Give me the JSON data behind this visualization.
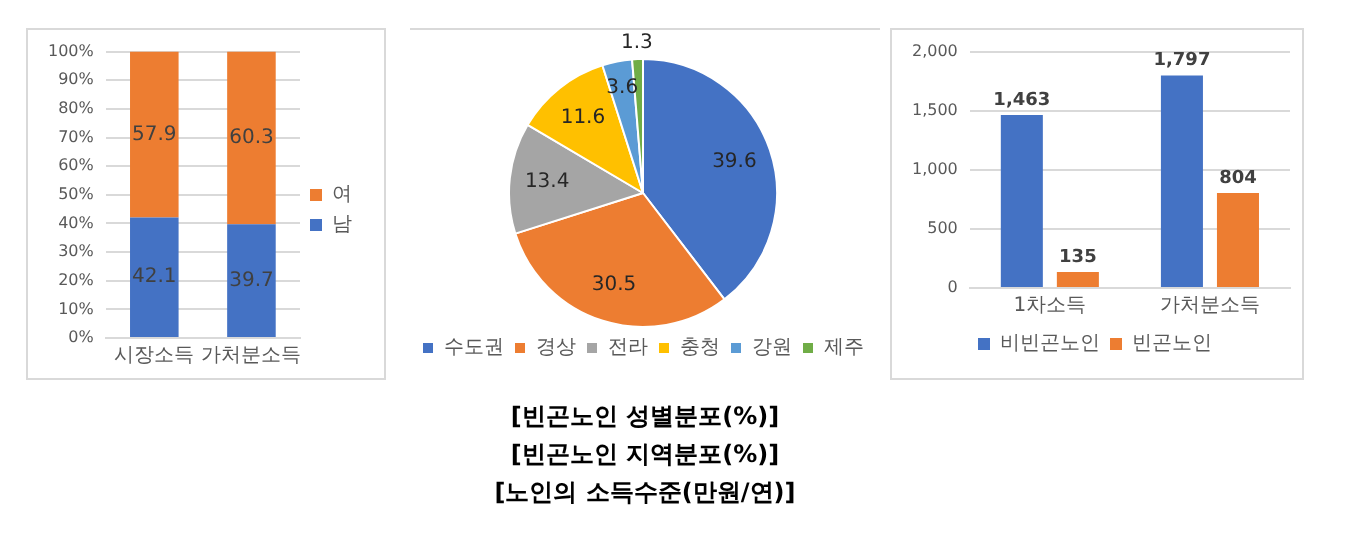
{
  "chart_data": [
    {
      "type": "bar",
      "categories": [
        "시장소득",
        "가처분소득"
      ],
      "stacked": true,
      "series": [
        {
          "name": "남",
          "color": "#4472c4",
          "values": [
            42.1,
            39.7
          ]
        },
        {
          "name": "여",
          "color": "#ed7d31",
          "values": [
            57.9,
            60.3
          ]
        }
      ],
      "ylim": [
        0,
        100
      ],
      "yticks": [
        {
          "value": 0,
          "label": "0%"
        },
        {
          "value": 10,
          "label": "10%"
        },
        {
          "value": 20,
          "label": "20%"
        },
        {
          "value": 30,
          "label": "30%"
        },
        {
          "value": 40,
          "label": "40%"
        },
        {
          "value": 50,
          "label": "50%"
        },
        {
          "value": 60,
          "label": "60%"
        },
        {
          "value": 70,
          "label": "70%"
        },
        {
          "value": 80,
          "label": "80%"
        },
        {
          "value": 90,
          "label": "90%"
        },
        {
          "value": 100,
          "label": "100%"
        }
      ],
      "grid": "y",
      "legend": "right",
      "data_labels": true
    },
    {
      "type": "pie",
      "annotations": [
        "[빈곤노인 성별분포(%)]",
        "[빈곤노인 지역분포(%)]",
        "[노인의 소득수준(만원/연)]"
      ],
      "categories": [
        "수도권",
        "경상",
        "전라",
        "충청",
        "강원",
        "제주"
      ],
      "values": [
        39.6,
        30.5,
        13.4,
        11.6,
        3.6,
        1.3
      ],
      "colors": [
        "#4472c4",
        "#ed7d31",
        "#a5a5a5",
        "#ffc000",
        "#5b9bd5",
        "#70ad47"
      ],
      "legend": "bottom",
      "data_labels": true
    },
    {
      "type": "bar",
      "categories": [
        "1차소득",
        "가처분소득"
      ],
      "series": [
        {
          "name": "비빈곤노인",
          "color": "#4472c4",
          "values": [
            1463,
            1797
          ],
          "value_labels": [
            "1,463",
            "1,797"
          ]
        },
        {
          "name": "빈곤노인",
          "color": "#ed7d31",
          "values": [
            135,
            804
          ],
          "value_labels": [
            "135",
            "804"
          ]
        }
      ],
      "ylim": [
        0,
        2000
      ],
      "yticks": [
        {
          "value": 0,
          "label": "0"
        },
        {
          "value": 500,
          "label": "500"
        },
        {
          "value": 1000,
          "label": "1,000"
        },
        {
          "value": 1500,
          "label": "1,500"
        },
        {
          "value": 2000,
          "label": "2,000"
        }
      ],
      "grid": "y",
      "legend": "bottom"
    }
  ]
}
